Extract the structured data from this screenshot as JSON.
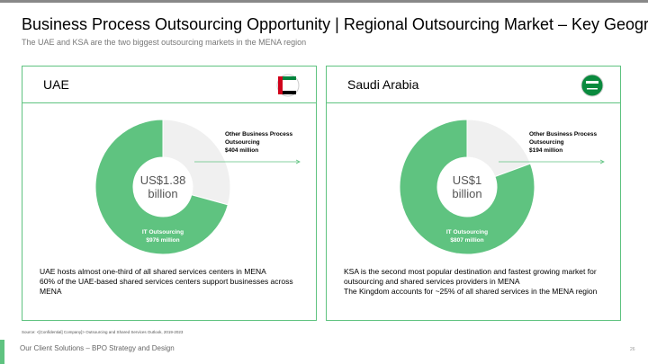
{
  "header": {
    "title": "Business Process Outsourcing Opportunity | Regional Outsourcing Market – Key Geographies",
    "subtitle": "The UAE and KSA are the two biggest outsourcing markets in the MENA region"
  },
  "chart_data": [
    {
      "type": "donut",
      "title": "UAE",
      "center_label": "US$1.38 billion",
      "categories": [
        "Other Business Process Outsourcing",
        "IT Outsourcing"
      ],
      "values": [
        404,
        976
      ],
      "value_labels": [
        "$404 million",
        "$976 million"
      ],
      "colors": [
        "#f0f0f0",
        "#5fc380"
      ]
    },
    {
      "type": "donut",
      "title": "Saudi Arabia",
      "center_label": "US$1 billion",
      "categories": [
        "Other Business Process Outsourcing",
        "IT Outsourcing"
      ],
      "values": [
        194,
        807
      ],
      "value_labels": [
        "$194 million",
        "$807 million"
      ],
      "colors": [
        "#f0f0f0",
        "#5fc380"
      ]
    }
  ],
  "panels": [
    {
      "body": [
        "UAE hosts almost one-third of all shared services centers in MENA",
        "60% of the UAE-based shared services centers support businesses across MENA"
      ]
    },
    {
      "body": [
        "KSA is the second most popular destination and fastest growing market for outsourcing and shared services providers in MENA",
        "The Kingdom accounts for ~25% of all shared services in the MENA region"
      ]
    }
  ],
  "source": "Source: <[Confidential] Company]> Outsourcing and Shared Services Outlook, 2019-2023",
  "footer": {
    "text": "Our Client Solutions – BPO Strategy and Design",
    "page": "26"
  }
}
